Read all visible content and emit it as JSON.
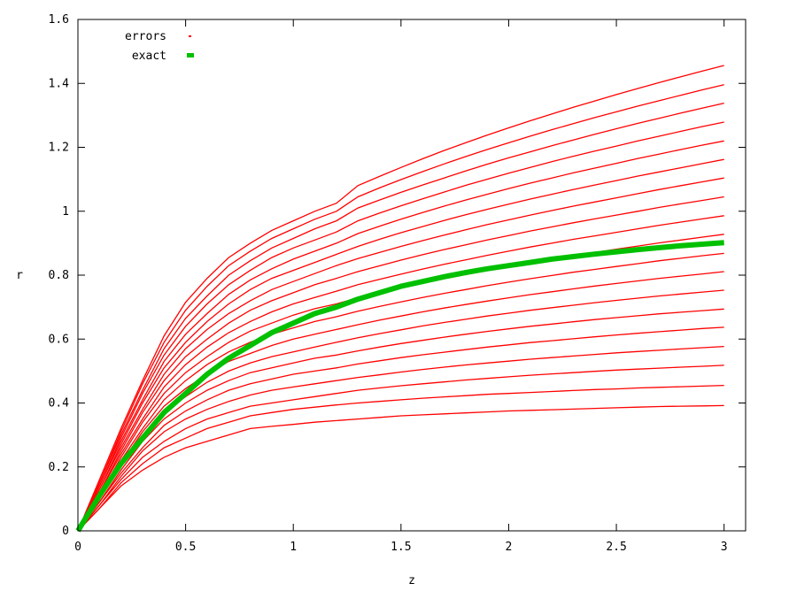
{
  "chart_data": {
    "type": "line",
    "title": "",
    "xlabel": "z",
    "ylabel": "r",
    "xlim": [
      0,
      3.1
    ],
    "ylim": [
      0,
      1.6
    ],
    "xticks": [
      0,
      0.5,
      1,
      1.5,
      2,
      2.5,
      3
    ],
    "xtick_labels": [
      "0",
      "0.5",
      "1",
      "1.5",
      "2",
      "2.5",
      "3"
    ],
    "yticks": [
      0,
      0.2,
      0.4,
      0.6,
      0.8,
      1,
      1.2,
      1.4,
      1.6
    ],
    "ytick_labels": [
      "0",
      "0.2",
      "0.4",
      "0.6",
      "0.8",
      "1",
      "1.2",
      "1.4",
      "1.6"
    ],
    "grid": false,
    "legend_position": "top-left",
    "legend": [
      {
        "label": "errors",
        "color": "#ff0000"
      },
      {
        "label": "exact",
        "color": "#00c000"
      }
    ],
    "x": [
      0,
      0.1,
      0.2,
      0.3,
      0.4,
      0.5,
      0.6,
      0.7,
      0.8,
      0.9,
      1.0,
      1.1,
      1.2,
      1.3,
      1.4,
      1.5,
      1.6,
      1.7,
      1.8,
      1.9,
      2.0,
      2.1,
      2.2,
      2.3,
      2.4,
      2.5,
      2.6,
      2.7,
      2.8,
      2.9,
      3.0
    ],
    "series": [
      {
        "name": "exact",
        "color": "#00c000",
        "values": [
          0.0,
          0.11,
          0.21,
          0.29,
          0.37,
          0.43,
          0.49,
          0.54,
          0.58,
          0.62,
          0.65,
          0.68,
          0.7,
          0.725,
          0.745,
          0.765,
          0.78,
          0.795,
          0.808,
          0.82,
          0.83,
          0.84,
          0.85,
          0.858,
          0.866,
          0.873,
          0.88,
          0.886,
          0.892,
          0.897,
          0.902
        ]
      },
      {
        "color": "#ff0000",
        "values": [
          0.0,
          0.07,
          0.14,
          0.19,
          0.23,
          0.26,
          0.28,
          0.3,
          0.32,
          0.327,
          0.333,
          0.34,
          0.345,
          0.35,
          0.355,
          0.36,
          0.363,
          0.366,
          0.369,
          0.372,
          0.375,
          0.377,
          0.379,
          0.381,
          0.383,
          0.385,
          0.387,
          0.389,
          0.39,
          0.391,
          0.392
        ]
      },
      {
        "color": "#ff0000",
        "values": [
          0.0,
          0.07,
          0.15,
          0.21,
          0.26,
          0.29,
          0.32,
          0.34,
          0.36,
          0.37,
          0.38,
          0.387,
          0.394,
          0.4,
          0.405,
          0.41,
          0.415,
          0.419,
          0.423,
          0.427,
          0.43,
          0.433,
          0.436,
          0.439,
          0.442,
          0.444,
          0.447,
          0.449,
          0.451,
          0.453,
          0.455
        ]
      },
      {
        "color": "#ff0000",
        "values": [
          0.0,
          0.08,
          0.16,
          0.23,
          0.28,
          0.32,
          0.35,
          0.37,
          0.39,
          0.4,
          0.41,
          0.42,
          0.43,
          0.44,
          0.447,
          0.454,
          0.46,
          0.466,
          0.472,
          0.477,
          0.482,
          0.487,
          0.491,
          0.495,
          0.499,
          0.503,
          0.506,
          0.509,
          0.512,
          0.515,
          0.518
        ]
      },
      {
        "color": "#ff0000",
        "values": [
          0.0,
          0.08,
          0.17,
          0.25,
          0.31,
          0.35,
          0.38,
          0.405,
          0.425,
          0.44,
          0.45,
          0.46,
          0.47,
          0.48,
          0.488,
          0.497,
          0.505,
          0.512,
          0.519,
          0.525,
          0.531,
          0.537,
          0.542,
          0.547,
          0.552,
          0.557,
          0.561,
          0.565,
          0.569,
          0.573,
          0.577
        ]
      },
      {
        "color": "#ff0000",
        "values": [
          0.0,
          0.09,
          0.18,
          0.26,
          0.33,
          0.375,
          0.41,
          0.44,
          0.46,
          0.475,
          0.49,
          0.5,
          0.51,
          0.522,
          0.532,
          0.542,
          0.551,
          0.559,
          0.567,
          0.575,
          0.582,
          0.589,
          0.595,
          0.601,
          0.607,
          0.613,
          0.618,
          0.623,
          0.628,
          0.633,
          0.637
        ]
      },
      {
        "color": "#ff0000",
        "values": [
          0.0,
          0.09,
          0.19,
          0.28,
          0.35,
          0.4,
          0.44,
          0.47,
          0.495,
          0.51,
          0.525,
          0.54,
          0.55,
          0.563,
          0.575,
          0.586,
          0.596,
          0.606,
          0.615,
          0.624,
          0.632,
          0.64,
          0.647,
          0.654,
          0.661,
          0.667,
          0.673,
          0.679,
          0.684,
          0.689,
          0.694
        ]
      },
      {
        "color": "#ff0000",
        "values": [
          0.0,
          0.1,
          0.2,
          0.29,
          0.37,
          0.42,
          0.465,
          0.5,
          0.525,
          0.545,
          0.56,
          0.575,
          0.59,
          0.604,
          0.617,
          0.629,
          0.641,
          0.652,
          0.662,
          0.672,
          0.681,
          0.69,
          0.698,
          0.706,
          0.714,
          0.721,
          0.728,
          0.735,
          0.741,
          0.747,
          0.753
        ]
      },
      {
        "color": "#ff0000",
        "values": [
          0.0,
          0.1,
          0.21,
          0.31,
          0.39,
          0.445,
          0.49,
          0.53,
          0.555,
          0.58,
          0.6,
          0.615,
          0.63,
          0.645,
          0.659,
          0.672,
          0.685,
          0.697,
          0.708,
          0.719,
          0.729,
          0.739,
          0.748,
          0.757,
          0.766,
          0.774,
          0.782,
          0.79,
          0.797,
          0.804,
          0.811
        ]
      },
      {
        "color": "#ff0000",
        "values": [
          0.0,
          0.11,
          0.22,
          0.32,
          0.41,
          0.47,
          0.52,
          0.56,
          0.59,
          0.615,
          0.635,
          0.655,
          0.67,
          0.687,
          0.702,
          0.716,
          0.73,
          0.743,
          0.755,
          0.767,
          0.778,
          0.789,
          0.799,
          0.809,
          0.818,
          0.827,
          0.836,
          0.845,
          0.853,
          0.861,
          0.868
        ]
      },
      {
        "color": "#ff0000",
        "values": [
          0.0,
          0.11,
          0.23,
          0.34,
          0.43,
          0.495,
          0.545,
          0.59,
          0.625,
          0.65,
          0.675,
          0.695,
          0.71,
          0.729,
          0.745,
          0.76,
          0.775,
          0.789,
          0.802,
          0.815,
          0.827,
          0.839,
          0.85,
          0.861,
          0.871,
          0.881,
          0.891,
          0.901,
          0.91,
          0.919,
          0.928
        ]
      },
      {
        "color": "#ff0000",
        "values": [
          0.0,
          0.12,
          0.24,
          0.35,
          0.45,
          0.52,
          0.575,
          0.62,
          0.655,
          0.685,
          0.71,
          0.73,
          0.75,
          0.77,
          0.787,
          0.803,
          0.819,
          0.834,
          0.848,
          0.862,
          0.875,
          0.888,
          0.9,
          0.912,
          0.923,
          0.934,
          0.945,
          0.956,
          0.966,
          0.976,
          0.986
        ]
      },
      {
        "color": "#ff0000",
        "values": [
          0.0,
          0.12,
          0.25,
          0.37,
          0.47,
          0.545,
          0.6,
          0.65,
          0.69,
          0.72,
          0.745,
          0.77,
          0.79,
          0.811,
          0.829,
          0.847,
          0.864,
          0.88,
          0.895,
          0.91,
          0.924,
          0.938,
          0.951,
          0.964,
          0.976,
          0.988,
          1.0,
          1.012,
          1.023,
          1.034,
          1.045
        ]
      },
      {
        "color": "#ff0000",
        "values": [
          0.0,
          0.13,
          0.26,
          0.38,
          0.49,
          0.57,
          0.63,
          0.68,
          0.72,
          0.755,
          0.78,
          0.805,
          0.83,
          0.852,
          0.871,
          0.89,
          0.908,
          0.925,
          0.942,
          0.958,
          0.973,
          0.988,
          1.002,
          1.016,
          1.029,
          1.042,
          1.055,
          1.068,
          1.08,
          1.092,
          1.104
        ]
      },
      {
        "color": "#ff0000",
        "values": [
          0.0,
          0.13,
          0.27,
          0.4,
          0.51,
          0.59,
          0.655,
          0.71,
          0.755,
          0.79,
          0.815,
          0.84,
          0.865,
          0.89,
          0.912,
          0.933,
          0.952,
          0.971,
          0.989,
          1.006,
          1.022,
          1.038,
          1.053,
          1.068,
          1.082,
          1.096,
          1.11,
          1.123,
          1.136,
          1.149,
          1.162
        ]
      },
      {
        "color": "#ff0000",
        "values": [
          0.0,
          0.14,
          0.28,
          0.41,
          0.53,
          0.615,
          0.68,
          0.74,
          0.785,
          0.82,
          0.85,
          0.875,
          0.9,
          0.93,
          0.953,
          0.975,
          0.996,
          1.016,
          1.035,
          1.053,
          1.071,
          1.088,
          1.104,
          1.12,
          1.135,
          1.15,
          1.165,
          1.179,
          1.193,
          1.207,
          1.22
        ]
      },
      {
        "color": "#ff0000",
        "values": [
          0.0,
          0.14,
          0.29,
          0.43,
          0.55,
          0.64,
          0.71,
          0.77,
          0.815,
          0.855,
          0.885,
          0.91,
          0.935,
          0.97,
          0.994,
          1.017,
          1.039,
          1.06,
          1.081,
          1.1,
          1.119,
          1.137,
          1.155,
          1.172,
          1.188,
          1.204,
          1.22,
          1.235,
          1.25,
          1.265,
          1.279
        ]
      },
      {
        "color": "#ff0000",
        "values": [
          0.0,
          0.15,
          0.3,
          0.44,
          0.57,
          0.665,
          0.735,
          0.8,
          0.845,
          0.885,
          0.915,
          0.945,
          0.97,
          1.01,
          1.035,
          1.059,
          1.082,
          1.104,
          1.126,
          1.147,
          1.167,
          1.186,
          1.205,
          1.223,
          1.241,
          1.258,
          1.275,
          1.291,
          1.307,
          1.323,
          1.338
        ]
      },
      {
        "color": "#ff0000",
        "values": [
          0.0,
          0.15,
          0.31,
          0.46,
          0.59,
          0.69,
          0.765,
          0.83,
          0.875,
          0.915,
          0.945,
          0.975,
          1.0,
          1.045,
          1.073,
          1.099,
          1.124,
          1.148,
          1.171,
          1.193,
          1.214,
          1.235,
          1.255,
          1.274,
          1.293,
          1.311,
          1.329,
          1.346,
          1.363,
          1.38,
          1.396
        ]
      },
      {
        "color": "#ff0000",
        "values": [
          0.0,
          0.16,
          0.32,
          0.47,
          0.61,
          0.715,
          0.79,
          0.855,
          0.9,
          0.94,
          0.97,
          1.0,
          1.025,
          1.08,
          1.109,
          1.137,
          1.164,
          1.19,
          1.214,
          1.238,
          1.261,
          1.283,
          1.304,
          1.325,
          1.345,
          1.365,
          1.384,
          1.403,
          1.421,
          1.439,
          1.456
        ]
      }
    ]
  }
}
